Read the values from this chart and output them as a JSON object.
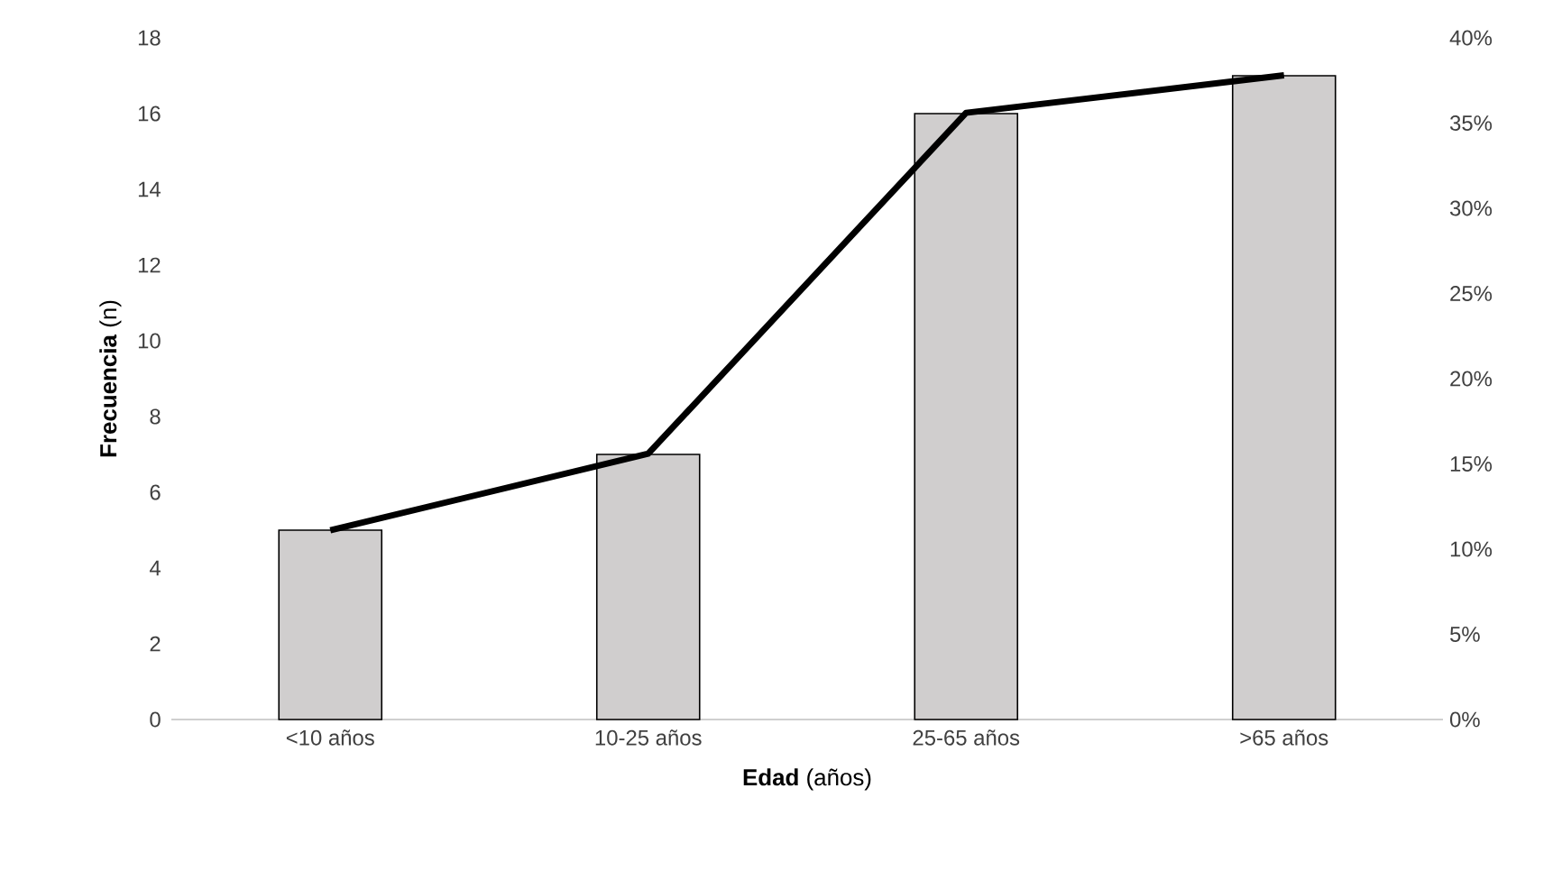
{
  "chart_data": {
    "type": "bar",
    "xlabel": "**Edad** (años)",
    "ylabel": "**Frecuencia** (n)",
    "categories": [
      "<10 años",
      "10-25 años",
      "25-65 años",
      ">65 años"
    ],
    "series": [
      {
        "color": "#d0cece",
        "values": [
          5,
          7,
          16,
          17
        ]
      },
      {
        "type": "line",
        "axis": "y2",
        "color": "#000000",
        "values": [
          11.1,
          15.6,
          35.6,
          37.8
        ]
      }
    ],
    "ylim": [
      0,
      18
    ],
    "yticks": [
      0,
      2,
      4,
      6,
      8,
      10,
      12,
      14,
      16,
      18
    ],
    "y2lim": [
      0,
      40
    ],
    "y2ticks": [
      {
        "value": 0,
        "label": "0%"
      },
      {
        "value": 5,
        "label": "5%"
      },
      {
        "value": 10,
        "label": "10%"
      },
      {
        "value": 15,
        "label": "15%"
      },
      {
        "value": 20,
        "label": "20%"
      },
      {
        "value": 25,
        "label": "25%"
      },
      {
        "value": 30,
        "label": "30%"
      },
      {
        "value": 35,
        "label": "35%"
      },
      {
        "value": 40,
        "label": "40%"
      }
    ],
    "grid": false
  }
}
